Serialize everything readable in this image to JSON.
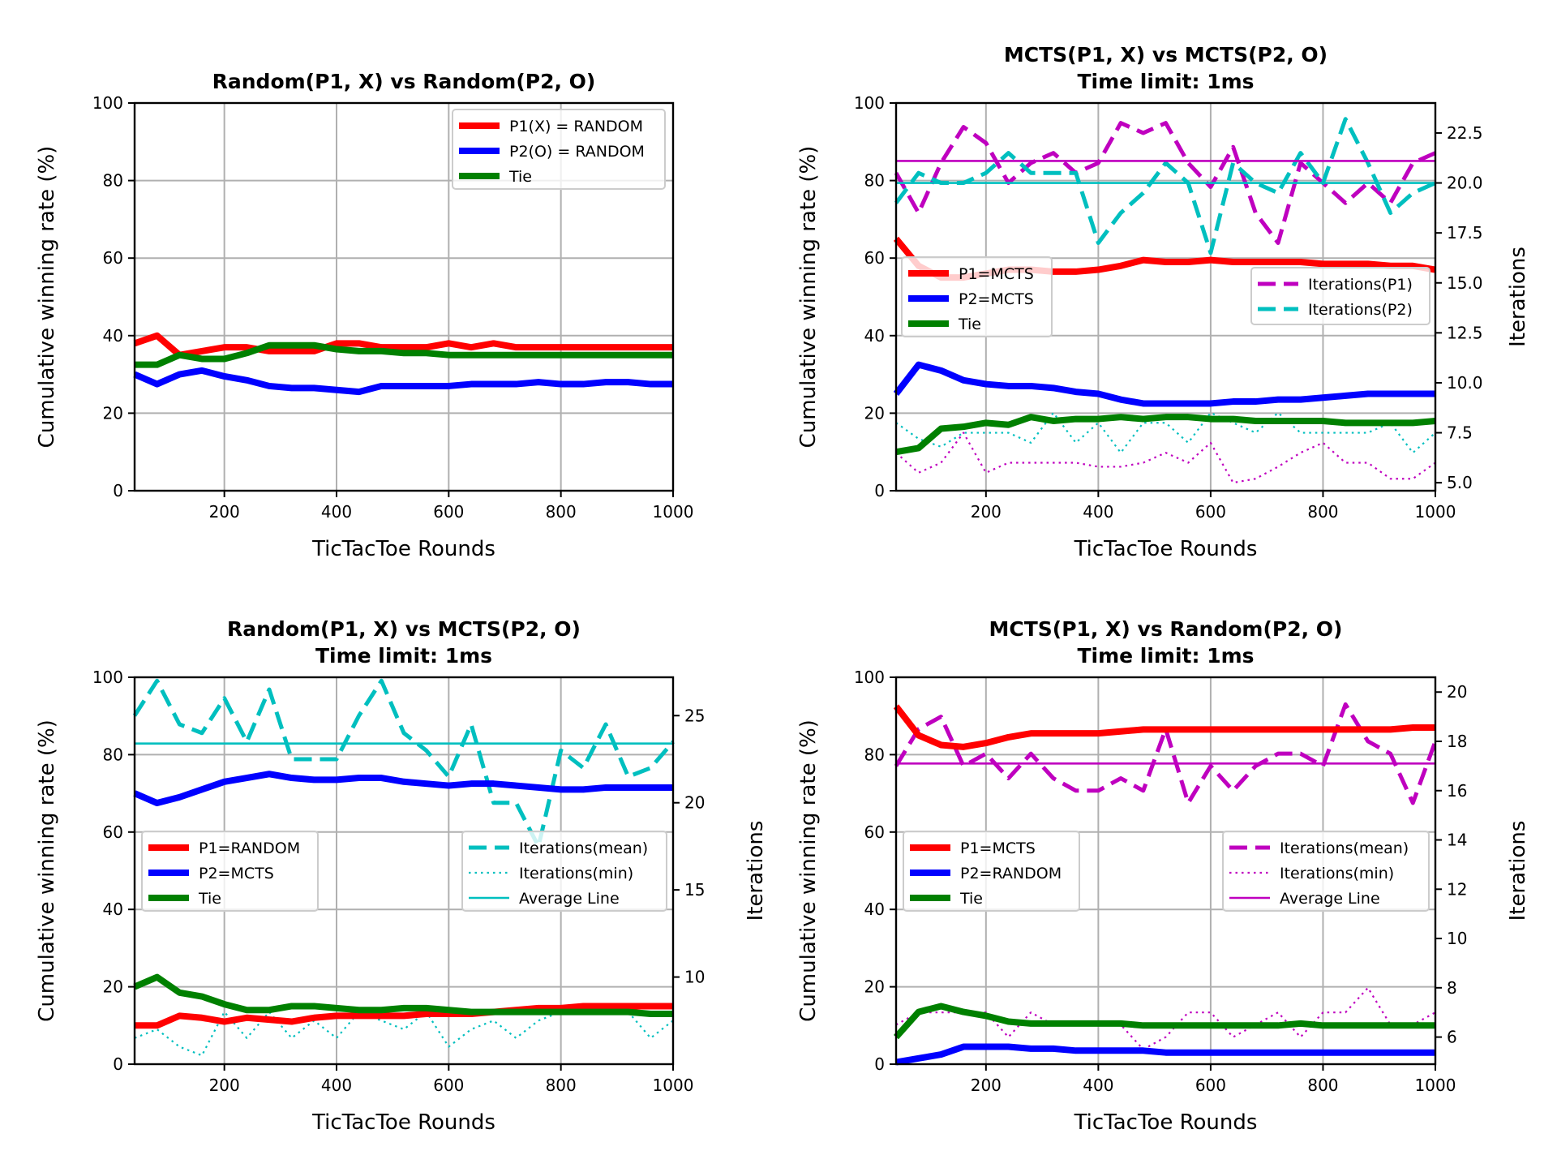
{
  "chart_data": [
    {
      "type": "line",
      "title": [
        "Random(P1, X) vs Random(P2, O)"
      ],
      "xlabel": "TicTacToe Rounds",
      "ylabel": "Cumulative winning rate (%)",
      "xlim": [
        40,
        1000
      ],
      "ylim": [
        0,
        100
      ],
      "xticks": [
        200,
        400,
        600,
        800,
        1000
      ],
      "yticks": [
        0,
        20,
        40,
        60,
        80,
        100
      ],
      "grid": true,
      "x": [
        40,
        80,
        120,
        160,
        200,
        240,
        280,
        320,
        360,
        400,
        440,
        480,
        520,
        560,
        600,
        640,
        680,
        720,
        760,
        800,
        840,
        880,
        920,
        960,
        1000
      ],
      "series": [
        {
          "name": "P1(X) = RANDOM",
          "color": "#ff0000",
          "values": [
            38,
            40,
            35,
            36,
            37,
            37,
            36,
            36,
            36,
            38,
            38,
            37,
            37,
            37,
            38,
            37,
            38,
            37,
            37,
            37,
            37,
            37,
            37,
            37,
            37
          ]
        },
        {
          "name": "P2(O) = RANDOM",
          "color": "#0000ff",
          "values": [
            30,
            27.5,
            30,
            31,
            29.5,
            28.5,
            27,
            26.5,
            26.5,
            26,
            25.5,
            27,
            27,
            27,
            27,
            27.5,
            27.5,
            27.5,
            28,
            27.5,
            27.5,
            28,
            28,
            27.5,
            27.5
          ]
        },
        {
          "name": "Tie",
          "color": "#008000",
          "values": [
            32.5,
            32.5,
            35,
            34,
            34,
            35.5,
            37.5,
            37.5,
            37.5,
            36.5,
            36,
            36,
            35.5,
            35.5,
            35,
            35,
            35,
            35,
            35,
            35,
            35,
            35,
            35,
            35,
            35
          ]
        }
      ],
      "legend": {
        "position": "top-right",
        "entries": [
          "P1(X) = RANDOM",
          "P2(O) = RANDOM",
          "Tie"
        ]
      }
    },
    {
      "type": "line",
      "title": [
        "MCTS(P1, X) vs MCTS(P2, O)",
        "Time limit: 1ms"
      ],
      "xlabel": "TicTacToe Rounds",
      "ylabel": "Cumulative winning rate (%)",
      "y2label": "Iterations",
      "xlim": [
        40,
        1000
      ],
      "ylim": [
        0,
        100
      ],
      "y2lim": [
        4.6,
        24.0
      ],
      "xticks": [
        200,
        400,
        600,
        800,
        1000
      ],
      "yticks": [
        0,
        20,
        40,
        60,
        80,
        100
      ],
      "y2ticks": [
        "5.0",
        "7.5",
        "10.0",
        "12.5",
        "15.0",
        "17.5",
        "20.0",
        "22.5"
      ],
      "grid": true,
      "x": [
        40,
        80,
        120,
        160,
        200,
        240,
        280,
        320,
        360,
        400,
        440,
        480,
        520,
        560,
        600,
        640,
        680,
        720,
        760,
        800,
        840,
        880,
        920,
        960,
        1000
      ],
      "series": [
        {
          "name": "P1=MCTS",
          "color": "#ff0000",
          "values": [
            65,
            58,
            55,
            55,
            56,
            57,
            57,
            56.5,
            56.5,
            57,
            58,
            59.5,
            59,
            59,
            59.5,
            59,
            59,
            59,
            59,
            58.5,
            58.5,
            58.5,
            58,
            58,
            57
          ]
        },
        {
          "name": "P2=MCTS",
          "color": "#0000ff",
          "values": [
            25,
            32.5,
            31,
            28.5,
            27.5,
            27,
            27,
            26.5,
            25.5,
            25,
            23.5,
            22.5,
            22.5,
            22.5,
            22.5,
            23,
            23,
            23.5,
            23.5,
            24,
            24.5,
            25,
            25,
            25,
            25
          ]
        },
        {
          "name": "Tie",
          "color": "#008000",
          "values": [
            10,
            11,
            16,
            16.5,
            17.5,
            17,
            19,
            18,
            18.5,
            18.5,
            19,
            18.5,
            19,
            19,
            18.5,
            18.5,
            18,
            18,
            18,
            18,
            17.5,
            17.5,
            17.5,
            17.5,
            18
          ]
        }
      ],
      "iterations": [
        {
          "name": "Iterations(P1)",
          "color": "#bf00bf",
          "style": "dashed",
          "values": [
            20.5,
            18.5,
            21,
            22.8,
            22.0,
            20.0,
            21.0,
            21.5,
            20.5,
            21.0,
            23.0,
            22.5,
            23.0,
            21.0,
            19.8,
            21.8,
            18.5,
            17.0,
            21.0,
            20.0,
            19.0,
            20.0,
            19.0,
            21.0,
            21.5
          ]
        },
        {
          "name": "Iterations(P2)",
          "color": "#00bfbf",
          "style": "dashed",
          "values": [
            19.0,
            20.5,
            20.0,
            20.0,
            20.5,
            21.5,
            20.5,
            20.5,
            20.5,
            17.0,
            18.5,
            19.5,
            21.0,
            20.0,
            16.5,
            21.0,
            20.0,
            19.5,
            21.5,
            20.0,
            23.2,
            21.0,
            18.5,
            19.5,
            20.0
          ]
        },
        {
          "name": "Iterations(P1) min",
          "color": "#bf00bf",
          "style": "dotted",
          "values": [
            6.5,
            5.5,
            6.0,
            7.5,
            5.5,
            6.0,
            6.0,
            6.0,
            6.0,
            5.8,
            5.8,
            6.0,
            6.5,
            6.0,
            7.0,
            5.0,
            5.2,
            5.8,
            6.5,
            7.0,
            6.0,
            6.0,
            5.2,
            5.2,
            6.0
          ]
        },
        {
          "name": "Iterations(P2) min",
          "color": "#00bfbf",
          "style": "dotted",
          "values": [
            8.0,
            7.2,
            6.8,
            7.5,
            7.5,
            7.5,
            7.0,
            8.5,
            7.0,
            8.0,
            6.5,
            8.0,
            8.0,
            7.0,
            8.5,
            8.0,
            7.5,
            8.5,
            7.5,
            7.5,
            7.5,
            7.5,
            8.0,
            6.5,
            7.5
          ]
        }
      ],
      "average_lines": [
        {
          "color": "#bf00bf",
          "value": 21.1
        },
        {
          "color": "#00bfbf",
          "value": 20.0
        }
      ],
      "legend": {
        "position": "center-left",
        "entries": [
          "P1=MCTS",
          "P2=MCTS",
          "Tie"
        ]
      },
      "legend2": {
        "position": "center-right",
        "entries": [
          "Iterations(P1)",
          "Iterations(P2)"
        ]
      }
    },
    {
      "type": "line",
      "title": [
        "Random(P1, X) vs MCTS(P2, O)",
        "Time limit: 1ms"
      ],
      "xlabel": "TicTacToe Rounds",
      "ylabel": "Cumulative winning rate (%)",
      "y2label": "Iterations",
      "xlim": [
        40,
        1000
      ],
      "ylim": [
        0,
        100
      ],
      "y2lim": [
        5.0,
        27.2
      ],
      "xticks": [
        200,
        400,
        600,
        800,
        1000
      ],
      "yticks": [
        0,
        20,
        40,
        60,
        80,
        100
      ],
      "y2ticks": [
        "10",
        "15",
        "20",
        "25"
      ],
      "grid": true,
      "x": [
        40,
        80,
        120,
        160,
        200,
        240,
        280,
        320,
        360,
        400,
        440,
        480,
        520,
        560,
        600,
        640,
        680,
        720,
        760,
        800,
        840,
        880,
        920,
        960,
        1000
      ],
      "series": [
        {
          "name": "P1=RANDOM",
          "color": "#ff0000",
          "values": [
            10,
            10,
            12.5,
            12,
            11,
            12,
            11.5,
            11,
            12,
            12.5,
            12.5,
            12.5,
            12.5,
            13,
            13,
            13,
            13.5,
            14,
            14.5,
            14.5,
            15,
            15,
            15,
            15,
            15
          ]
        },
        {
          "name": "P2=MCTS",
          "color": "#0000ff",
          "values": [
            70,
            67.5,
            69,
            71,
            73,
            74,
            75,
            74,
            73.5,
            73.5,
            74,
            74,
            73,
            72.5,
            72,
            72.5,
            72.5,
            72,
            71.5,
            71,
            71,
            71.5,
            71.5,
            71.5,
            71.5
          ]
        },
        {
          "name": "Tie",
          "color": "#008000",
          "values": [
            20,
            22.5,
            18.5,
            17.5,
            15.5,
            14,
            14,
            15,
            15,
            14.5,
            14,
            14,
            14.5,
            14.5,
            14,
            13.5,
            13.5,
            13.5,
            13.5,
            13.5,
            13.5,
            13.5,
            13.5,
            13,
            13
          ]
        }
      ],
      "iterations": [
        {
          "name": "Iterations(mean)",
          "color": "#00bfbf",
          "style": "dashed",
          "values": [
            25,
            27,
            24.5,
            24,
            26,
            23.5,
            26.5,
            22.5,
            22.5,
            22.5,
            25,
            27,
            24,
            23,
            21.5,
            24.5,
            20,
            20,
            17.5,
            23,
            22,
            24.5,
            21.5,
            22,
            23.5
          ]
        },
        {
          "name": "Iterations(min)",
          "color": "#00bfbf",
          "style": "dotted",
          "values": [
            6.5,
            7,
            6,
            5.5,
            8,
            6.5,
            8,
            6.5,
            7.5,
            6.5,
            8,
            7.5,
            7,
            8,
            6,
            7,
            7.5,
            6.5,
            7.5,
            8,
            8,
            8,
            8,
            6.5,
            7.5
          ]
        }
      ],
      "average_lines": [
        {
          "color": "#00bfbf",
          "value": 23.4
        }
      ],
      "legend": {
        "position": "center-left",
        "entries": [
          "P1=RANDOM",
          "P2=MCTS",
          "Tie"
        ]
      },
      "legend2": {
        "position": "center-right",
        "entries": [
          "Iterations(mean)",
          "Iterations(min)",
          "Average Line"
        ]
      }
    },
    {
      "type": "line",
      "title": [
        "MCTS(P1, X) vs Random(P2, O)",
        "Time limit: 1ms"
      ],
      "xlabel": "TicTacToe Rounds",
      "ylabel": "Cumulative winning rate (%)",
      "y2label": "Iterations",
      "xlim": [
        40,
        1000
      ],
      "ylim": [
        0,
        100
      ],
      "y2lim": [
        4.9,
        20.6
      ],
      "xticks": [
        200,
        400,
        600,
        800,
        1000
      ],
      "yticks": [
        0,
        20,
        40,
        60,
        80,
        100
      ],
      "y2ticks": [
        "6",
        "8",
        "10",
        "12",
        "14",
        "16",
        "18",
        "20"
      ],
      "grid": true,
      "x": [
        40,
        80,
        120,
        160,
        200,
        240,
        280,
        320,
        360,
        400,
        440,
        480,
        520,
        560,
        600,
        640,
        680,
        720,
        760,
        800,
        840,
        880,
        920,
        960,
        1000
      ],
      "series": [
        {
          "name": "P1=MCTS",
          "color": "#ff0000",
          "values": [
            92.5,
            85,
            82.5,
            82,
            83,
            84.5,
            85.5,
            85.5,
            85.5,
            85.5,
            86,
            86.5,
            86.5,
            86.5,
            86.5,
            86.5,
            86.5,
            86.5,
            86.5,
            86.5,
            86.5,
            86.5,
            86.5,
            87,
            87
          ]
        },
        {
          "name": "P2=RANDOM",
          "color": "#0000ff",
          "values": [
            0.5,
            1.5,
            2.5,
            4.5,
            4.5,
            4.5,
            4,
            4,
            3.5,
            3.5,
            3.5,
            3.5,
            3,
            3,
            3,
            3,
            3,
            3,
            3,
            3,
            3,
            3,
            3,
            3,
            3
          ]
        },
        {
          "name": "Tie",
          "color": "#008000",
          "values": [
            7,
            13.5,
            15,
            13.5,
            12.5,
            11,
            10.5,
            10.5,
            10.5,
            10.5,
            10.5,
            10,
            10,
            10,
            10,
            10,
            10,
            10,
            10.5,
            10,
            10,
            10,
            10,
            10,
            10
          ]
        }
      ],
      "iterations": [
        {
          "name": "Iterations(mean)",
          "color": "#bf00bf",
          "style": "dashed",
          "values": [
            17,
            18.5,
            19,
            17,
            17.5,
            16.5,
            17.5,
            16.5,
            16,
            16,
            16.5,
            16,
            18.5,
            15.5,
            17,
            16,
            17,
            17.5,
            17.5,
            17,
            19.5,
            18,
            17.5,
            15.5,
            18
          ]
        },
        {
          "name": "Iterations(min)",
          "color": "#bf00bf",
          "style": "dotted",
          "values": [
            6.5,
            7,
            7,
            7,
            7,
            6,
            7,
            6.5,
            6.5,
            6.5,
            6.5,
            5.5,
            6,
            7,
            7,
            6,
            6.5,
            7,
            6,
            7,
            7,
            8,
            6.5,
            6.5,
            7
          ]
        }
      ],
      "average_lines": [
        {
          "color": "#bf00bf",
          "value": 17.1
        }
      ],
      "legend": {
        "position": "center-left",
        "entries": [
          "P1=MCTS",
          "P2=RANDOM",
          "Tie"
        ]
      },
      "legend2": {
        "position": "center-right",
        "entries": [
          "Iterations(mean)",
          "Iterations(min)",
          "Average Line"
        ]
      }
    }
  ]
}
